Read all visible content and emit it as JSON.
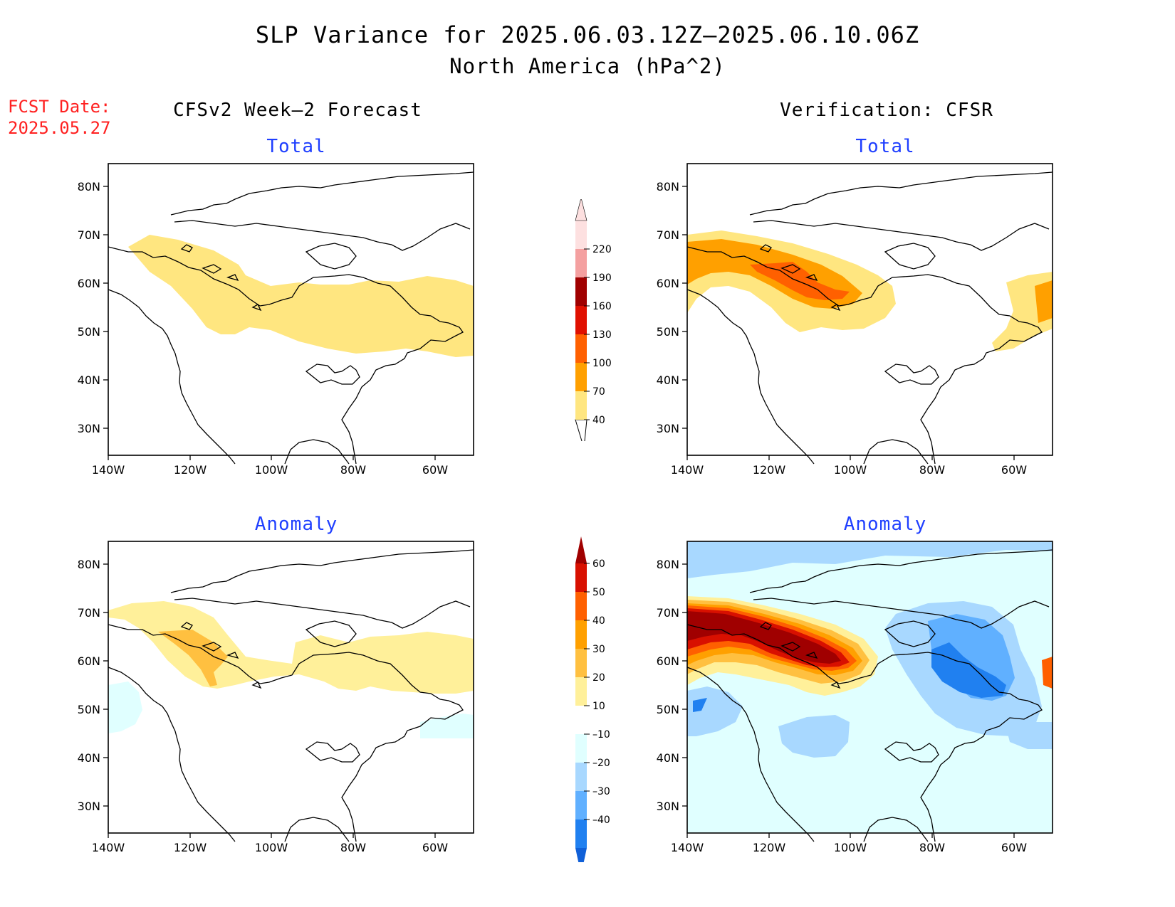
{
  "title": {
    "line1": "SLP Variance for 2025.06.03.12Z–2025.06.10.06Z",
    "line2": "North America (hPa^2)"
  },
  "forecast_date": {
    "label": "FCST Date:",
    "value": "2025.05.27"
  },
  "columns": {
    "left": "CFSv2 Week–2 Forecast",
    "right": "Verification: CFSR"
  },
  "panels": {
    "forecast_total": "Total",
    "verification_total": "Total",
    "forecast_anomaly": "Anomaly",
    "verification_anomaly": "Anomaly"
  },
  "axes": {
    "lon_ticks": [
      "140W",
      "120W",
      "100W",
      "80W",
      "60W"
    ],
    "lat_ticks": [
      "80N",
      "70N",
      "60N",
      "50N",
      "40N",
      "30N"
    ]
  },
  "colorbars": {
    "total": {
      "levels": [
        "40",
        "70",
        "100",
        "130",
        "160",
        "190",
        "220"
      ],
      "colors": [
        "#ffe680",
        "#ffa000",
        "#ff6000",
        "#e01000",
        "#a00000",
        "#f4a0a0",
        "#fde0e0"
      ]
    },
    "anomaly": {
      "levels": [
        "60",
        "50",
        "40",
        "30",
        "20",
        "10",
        "–10",
        "–20",
        "–30",
        "–40"
      ],
      "colors": [
        "#a00000",
        "#d81000",
        "#ff6000",
        "#ffa000",
        "#ffc040",
        "#fff09a",
        "#ffffff",
        "#e0ffff",
        "#a8d8ff",
        "#60b0ff",
        "#2080f0",
        "#1060d8"
      ]
    }
  },
  "colors": {
    "fcst_text": "#ff2020",
    "panel_title": "#1f3fff"
  }
}
